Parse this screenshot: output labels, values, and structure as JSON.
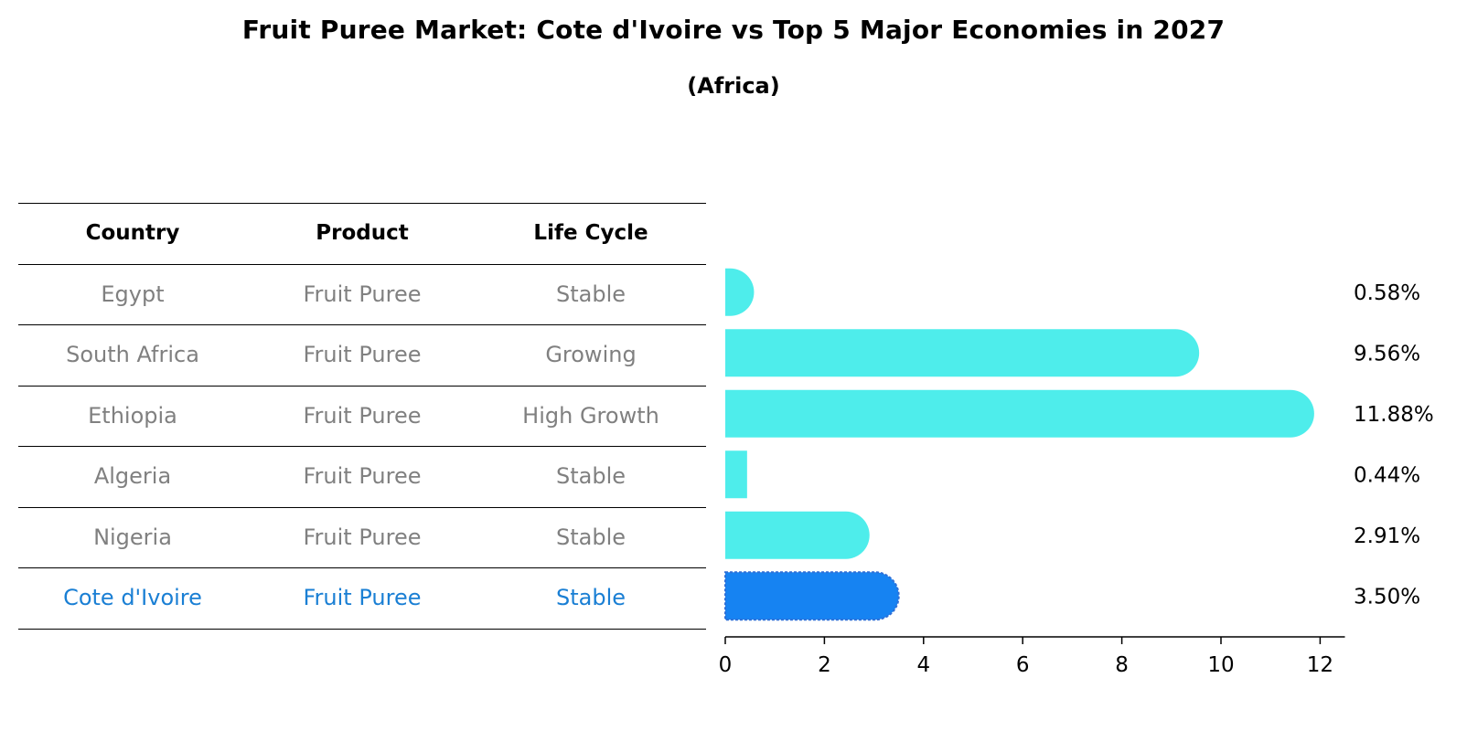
{
  "title": "Fruit Puree Market: Cote d'Ivoire vs Top 5 Major Economies in 2027",
  "subtitle": "(Africa)",
  "table": {
    "headers": [
      "Country",
      "Product",
      "Life Cycle"
    ],
    "rows": [
      {
        "country": "Egypt",
        "product": "Fruit Puree",
        "life_cycle": "Stable",
        "highlight": false
      },
      {
        "country": "South Africa",
        "product": "Fruit Puree",
        "life_cycle": "Growing",
        "highlight": false
      },
      {
        "country": "Ethiopia",
        "product": "Fruit Puree",
        "life_cycle": "High Growth",
        "highlight": false
      },
      {
        "country": "Algeria",
        "product": "Fruit Puree",
        "life_cycle": "Stable",
        "highlight": false
      },
      {
        "country": "Nigeria",
        "product": "Fruit Puree",
        "life_cycle": "Stable",
        "highlight": false
      },
      {
        "country": "Cote d'Ivoire",
        "product": "Fruit Puree",
        "life_cycle": "Stable",
        "highlight": true
      }
    ]
  },
  "chart_data": {
    "type": "bar",
    "orientation": "horizontal",
    "categories": [
      "Egypt",
      "South Africa",
      "Ethiopia",
      "Algeria",
      "Nigeria",
      "Cote d'Ivoire"
    ],
    "values": [
      0.58,
      9.56,
      11.88,
      0.44,
      2.91,
      3.5
    ],
    "value_labels": [
      "0.58%",
      "9.56%",
      "11.88%",
      "0.44%",
      "2.91%",
      "3.50%"
    ],
    "highlight_index": 5,
    "xlim": [
      0,
      12.5
    ],
    "xticks": [
      0,
      2,
      4,
      6,
      8,
      10,
      12
    ],
    "xlabel": "",
    "ylabel": "",
    "grid": false
  },
  "colors": {
    "bar": "#4EEDEB",
    "highlight_bar": "#1683F2",
    "highlight_text": "#1A7FD4",
    "muted_text": "#808080"
  }
}
